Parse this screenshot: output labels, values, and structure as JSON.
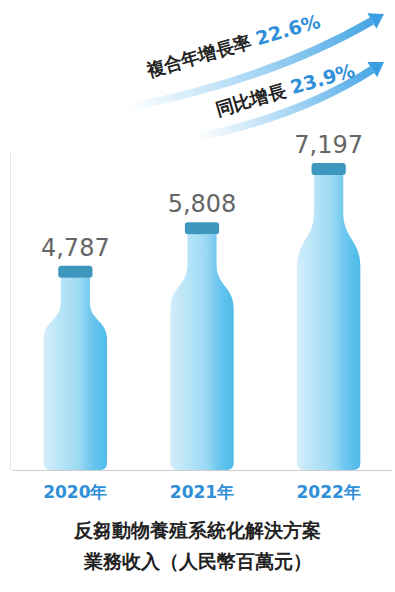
{
  "chart_data": {
    "type": "bar",
    "title": "反芻動物養殖系統化解決方案業務收入（人民幣百萬元）",
    "categories": [
      "2020年",
      "2021年",
      "2022年"
    ],
    "values": [
      4787,
      5808,
      7197
    ],
    "value_labels": [
      "4,787",
      "5,808",
      "7,197"
    ],
    "data_labels": true,
    "color": "#4dbbeb",
    "marker": "bottle",
    "ylim": [
      0,
      7500
    ],
    "yticks": [],
    "tick_labels": "x",
    "grid": false,
    "annotations": [
      {
        "text": "複合年增長率",
        "label": "22.6%"
      },
      {
        "text": "同比增長",
        "label": "23.9%"
      }
    ]
  }
}
